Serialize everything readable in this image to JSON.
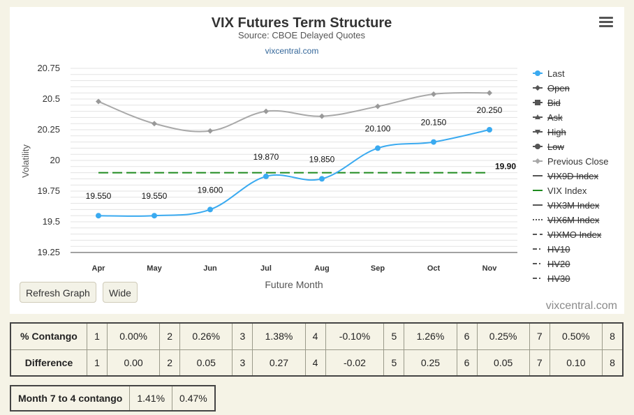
{
  "chart_data": {
    "type": "line",
    "title": "VIX Futures Term Structure",
    "subtitle": "Source: CBOE Delayed Quotes",
    "credit_link": "vixcentral.com",
    "watermark": "vixcentral.com",
    "xlabel": "Future Month",
    "ylabel": "Volatility",
    "categories": [
      "Apr",
      "May",
      "Jun",
      "Jul",
      "Aug",
      "Sep",
      "Oct",
      "Nov"
    ],
    "y_ticks": [
      "19.25",
      "19.5",
      "19.75",
      "20",
      "20.25",
      "20.5",
      "20.75"
    ],
    "ylim": [
      19.25,
      20.75
    ],
    "grid": true,
    "legend_position": "right",
    "series": [
      {
        "name": "Last",
        "color": "#3aaaf0",
        "values": [
          19.55,
          19.55,
          19.6,
          19.87,
          19.85,
          20.1,
          20.15,
          20.25
        ],
        "labels": [
          "19.550",
          "19.550",
          "19.600",
          "19.870",
          "19.850",
          "20.100",
          "20.150",
          "20.250"
        ]
      },
      {
        "name": "Previous Close",
        "color": "#a8a8a8",
        "values": [
          20.48,
          20.3,
          20.24,
          20.4,
          20.36,
          20.44,
          20.54,
          20.55
        ]
      },
      {
        "name": "VIX Index",
        "color": "#1e8a1e",
        "value": 19.9,
        "value_label": "19.90"
      }
    ],
    "legend": [
      {
        "label": "Last",
        "marker": "circle",
        "color": "#3aaaf0",
        "hidden": false
      },
      {
        "label": "Open",
        "marker": "diamond",
        "color": "#555555",
        "hidden": true
      },
      {
        "label": "Bid",
        "marker": "square",
        "color": "#555555",
        "hidden": true
      },
      {
        "label": "Ask",
        "marker": "triangle",
        "color": "#555555",
        "hidden": true
      },
      {
        "label": "High",
        "marker": "triangle-down",
        "color": "#555555",
        "hidden": true
      },
      {
        "label": "Low",
        "marker": "circle",
        "color": "#555555",
        "hidden": true
      },
      {
        "label": "Previous Close",
        "marker": "diamond",
        "color": "#a8a8a8",
        "hidden": false
      },
      {
        "label": "VIX9D Index",
        "marker": "solid",
        "color": "#555555",
        "hidden": true
      },
      {
        "label": "VIX Index",
        "marker": "solid",
        "color": "#1e8a1e",
        "hidden": false
      },
      {
        "label": "VIX3M Index",
        "marker": "solid",
        "color": "#555555",
        "hidden": true
      },
      {
        "label": "VIX6M Index",
        "marker": "dotted",
        "color": "#555555",
        "hidden": true
      },
      {
        "label": "VIXMO Index",
        "marker": "dashed",
        "color": "#555555",
        "hidden": true
      },
      {
        "label": "HV10",
        "marker": "dashdot",
        "color": "#555555",
        "hidden": true
      },
      {
        "label": "HV20",
        "marker": "dashdot",
        "color": "#555555",
        "hidden": true
      },
      {
        "label": "HV30",
        "marker": "dashdot",
        "color": "#555555",
        "hidden": true
      }
    ]
  },
  "controls": {
    "refresh_label": "Refresh Graph",
    "wide_label": "Wide",
    "menu_icon": "hamburger-menu-icon"
  },
  "contango_table": {
    "rows": [
      {
        "label": "% Contango",
        "cells": [
          {
            "idx": "1",
            "val": "0.00%"
          },
          {
            "idx": "2",
            "val": "0.26%"
          },
          {
            "idx": "3",
            "val": "1.38%"
          },
          {
            "idx": "4",
            "val": "-0.10%"
          },
          {
            "idx": "5",
            "val": "1.26%"
          },
          {
            "idx": "6",
            "val": "0.25%"
          },
          {
            "idx": "7",
            "val": "0.50%"
          }
        ],
        "last_idx": "8"
      },
      {
        "label": "Difference",
        "cells": [
          {
            "idx": "1",
            "val": "0.00"
          },
          {
            "idx": "2",
            "val": "0.05"
          },
          {
            "idx": "3",
            "val": "0.27"
          },
          {
            "idx": "4",
            "val": "-0.02"
          },
          {
            "idx": "5",
            "val": "0.25"
          },
          {
            "idx": "6",
            "val": "0.05"
          },
          {
            "idx": "7",
            "val": "0.10"
          }
        ],
        "last_idx": "8"
      }
    ]
  },
  "month_table": {
    "label": "Month 7 to 4 contango",
    "value1": "1.41%",
    "value2": "0.47%"
  }
}
